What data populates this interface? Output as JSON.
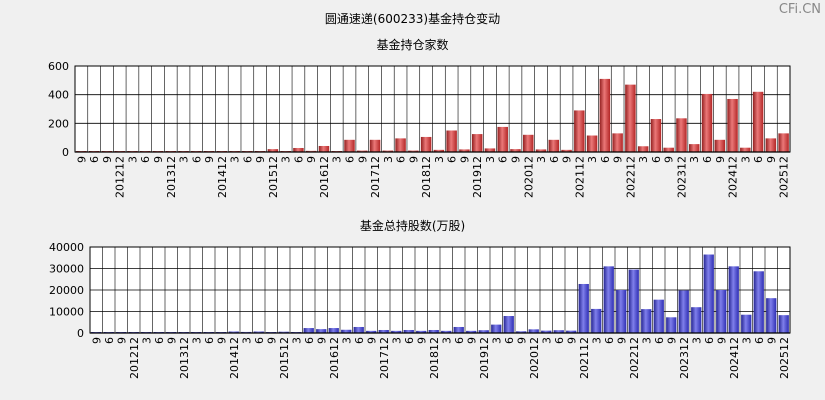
{
  "header": {
    "title": "圆通速递(600233)基金持仓变动",
    "watermark": "CFi.CN"
  },
  "chart_data": [
    {
      "type": "bar",
      "title": "基金持仓家数",
      "color": "#e03030",
      "ylim": [
        0,
        600
      ],
      "yticks": [
        0,
        200,
        400,
        600
      ],
      "categories": [
        "9",
        "6",
        "9",
        "201212",
        "3",
        "6",
        "9",
        "201312",
        "3",
        "6",
        "9",
        "201412",
        "3",
        "6",
        "9",
        "201512",
        "3",
        "6",
        "9",
        "201612",
        "3",
        "6",
        "9",
        "201712",
        "3",
        "6",
        "9",
        "201812",
        "3",
        "6",
        "9",
        "201912",
        "3",
        "6",
        "9",
        "202012",
        "3",
        "6",
        "9",
        "202112",
        "3",
        "6",
        "9",
        "202212",
        "3",
        "6",
        "9",
        "202312",
        "3",
        "6",
        "9",
        "202412",
        "3",
        "6",
        "9",
        "202512"
      ],
      "values": [
        2,
        2,
        2,
        3,
        2,
        2,
        2,
        3,
        2,
        2,
        2,
        3,
        2,
        2,
        2,
        20,
        5,
        28,
        8,
        42,
        6,
        85,
        10,
        85,
        10,
        95,
        10,
        105,
        15,
        150,
        18,
        125,
        25,
        175,
        20,
        120,
        18,
        85,
        15,
        290,
        115,
        510,
        130,
        470,
        40,
        230,
        30,
        235,
        55,
        405,
        85,
        370,
        30,
        420,
        95,
        130
      ],
      "grid": true
    },
    {
      "type": "bar",
      "title": "基金总持股数(万股)",
      "color": "#3a3ae0",
      "ylim": [
        0,
        40000
      ],
      "yticks": [
        0,
        10000,
        20000,
        30000,
        40000
      ],
      "categories": [
        "9",
        "6",
        "9",
        "201212",
        "3",
        "6",
        "9",
        "201312",
        "3",
        "6",
        "9",
        "201412",
        "3",
        "6",
        "9",
        "201512",
        "3",
        "6",
        "9",
        "201612",
        "3",
        "6",
        "9",
        "201712",
        "3",
        "6",
        "9",
        "201812",
        "3",
        "6",
        "9",
        "201912",
        "3",
        "6",
        "9",
        "202012",
        "3",
        "6",
        "9",
        "202112",
        "3",
        "6",
        "9",
        "202212",
        "3",
        "6",
        "9",
        "202312",
        "3",
        "6",
        "9",
        "202412",
        "3",
        "6",
        "9",
        "202512"
      ],
      "values": [
        200,
        200,
        200,
        300,
        200,
        200,
        200,
        300,
        200,
        200,
        300,
        700,
        500,
        700,
        300,
        600,
        400,
        2300,
        1800,
        2300,
        1500,
        2800,
        1000,
        1400,
        1000,
        1400,
        1000,
        1400,
        1000,
        2800,
        1000,
        1300,
        3900,
        7900,
        800,
        1700,
        1100,
        1300,
        1100,
        22800,
        11200,
        31000,
        20000,
        29500,
        11100,
        15500,
        7300,
        19800,
        12000,
        36500,
        20000,
        31000,
        8500,
        28700,
        16200,
        8300
      ],
      "grid": true
    }
  ]
}
